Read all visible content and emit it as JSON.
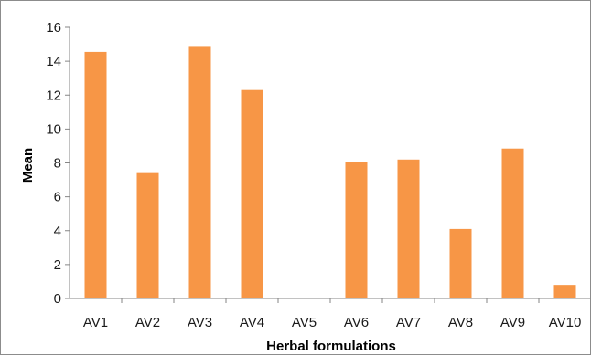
{
  "chart_data": {
    "type": "bar",
    "title": "",
    "xlabel": "Herbal formulations",
    "ylabel": "Mean",
    "categories": [
      "AV1",
      "AV2",
      "AV3",
      "AV4",
      "AV5",
      "AV6",
      "AV7",
      "AV8",
      "AV9",
      "AV10"
    ],
    "values": [
      14.55,
      7.4,
      14.9,
      12.3,
      0,
      8.05,
      8.2,
      4.1,
      8.85,
      0.8
    ],
    "ylim": [
      0,
      16
    ],
    "yticks": [
      0,
      2,
      4,
      6,
      8,
      10,
      12,
      14,
      16
    ],
    "grid": false,
    "legend": "none",
    "bar_color": "#F79646"
  }
}
